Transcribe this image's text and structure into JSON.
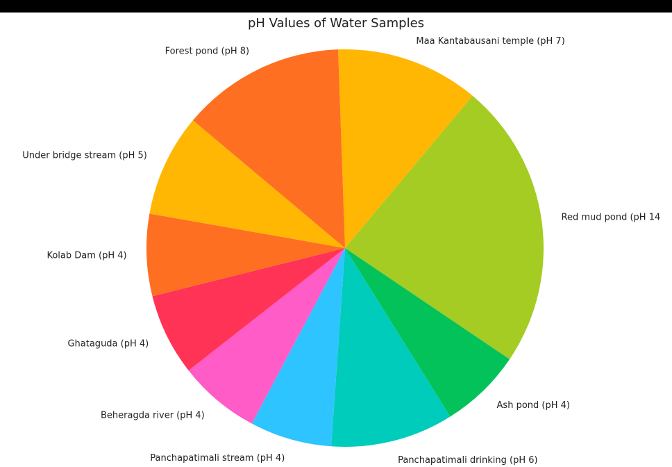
{
  "chart_data": {
    "type": "pie",
    "title": "pH Values of Water Samples",
    "categories": [
      "Maa Kantabausani temple (pH 7)",
      "Red mud pond (pH 14",
      "Ash pond (pH 4)",
      "Panchapatimali drinking (pH 6)",
      "Panchapatimali stream (pH 4)",
      "Beheragda river (pH 4)",
      "Ghataguda (pH 4)",
      "Kolab Dam (pH 4)",
      "Under bridge stream (pH 5)",
      "Forest pond (pH 8)"
    ],
    "values": [
      7,
      14,
      4,
      6,
      4,
      4,
      4,
      4,
      5,
      8
    ],
    "colors": [
      "#ffb703",
      "#a4cc22",
      "#03c25a",
      "#00ccbb",
      "#2ec4ff",
      "#ff5cc8",
      "#ff3355",
      "#ff6f22",
      "#ffb703",
      "#ff6f22"
    ]
  }
}
